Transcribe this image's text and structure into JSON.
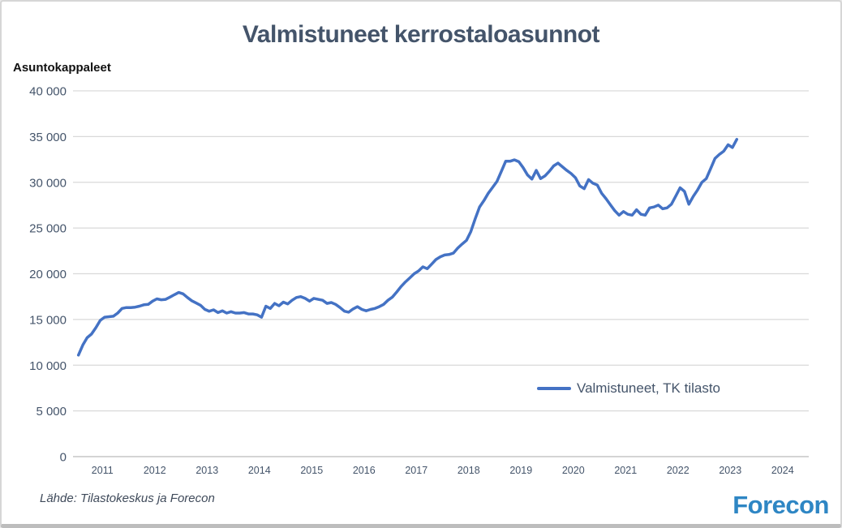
{
  "window": {
    "background": "#ffffff",
    "frame_border_color": "#d6d6d6"
  },
  "header": {
    "title": "Valmistuneet kerrostaloasunnot"
  },
  "chart_data": {
    "type": "line",
    "title": "Valmistuneet kerrostaloasunnot",
    "unit_label": "Asuntokappaleet",
    "grid": "horizontal",
    "ylim": [
      0,
      40000
    ],
    "y_step": 5000,
    "y_ticks": [
      {
        "value": 40000,
        "label": "40 000"
      },
      {
        "value": 35000,
        "label": "35 000"
      },
      {
        "value": 30000,
        "label": "30 000"
      },
      {
        "value": 25000,
        "label": "25 000"
      },
      {
        "value": 20000,
        "label": "20 000"
      },
      {
        "value": 15000,
        "label": "15 000"
      },
      {
        "value": 10000,
        "label": "10 000"
      },
      {
        "value": 5000,
        "label": "5 000"
      },
      {
        "value": 0,
        "label": "0"
      }
    ],
    "x_tick_labels": [
      "2011",
      "2012",
      "2013",
      "2014",
      "2015",
      "2016",
      "2017",
      "2018",
      "2019",
      "2020",
      "2021",
      "2022",
      "2023",
      "2024"
    ],
    "x_axis_years_shown": 14,
    "legend": {
      "position": "inside-right",
      "entries": [
        {
          "label": "Valmistuneet, TK tilasto",
          "color": "#4472C4"
        }
      ]
    },
    "series": [
      {
        "name": "Valmistuneet, TK tilasto",
        "color": "#4472C4",
        "frequency": "monthly",
        "x_start": "2011-01",
        "x_end": "2023-08",
        "values": [
          11100,
          12200,
          13000,
          13400,
          14100,
          14900,
          15250,
          15300,
          15350,
          15700,
          16200,
          16300,
          16300,
          16350,
          16450,
          16600,
          16650,
          17000,
          17250,
          17150,
          17200,
          17450,
          17700,
          17950,
          17800,
          17400,
          17050,
          16800,
          16550,
          16100,
          15900,
          16050,
          15750,
          15950,
          15700,
          15850,
          15700,
          15700,
          15750,
          15600,
          15600,
          15500,
          15250,
          16450,
          16200,
          16750,
          16500,
          16900,
          16700,
          17100,
          17400,
          17500,
          17300,
          17000,
          17300,
          17200,
          17100,
          16750,
          16850,
          16650,
          16300,
          15900,
          15800,
          16150,
          16400,
          16100,
          15950,
          16100,
          16200,
          16400,
          16650,
          17100,
          17450,
          18000,
          18600,
          19100,
          19550,
          20000,
          20300,
          20750,
          20550,
          21050,
          21550,
          21850,
          22050,
          22100,
          22250,
          22800,
          23250,
          23650,
          24600,
          26000,
          27300,
          28000,
          28800,
          29450,
          30100,
          31200,
          32300,
          32300,
          32450,
          32250,
          31600,
          30800,
          30350,
          31300,
          30400,
          30700,
          31200,
          31800,
          32100,
          31700,
          31300,
          30950,
          30500,
          29600,
          29300,
          30300,
          29900,
          29700,
          28800,
          28200,
          27550,
          26900,
          26400,
          26800,
          26500,
          26400,
          27000,
          26500,
          26400,
          27200,
          27300,
          27500,
          27100,
          27200,
          27600,
          28500,
          29400,
          29000,
          27600,
          28450,
          29150,
          30000,
          30400,
          31500,
          32600,
          33050,
          33400,
          34100,
          33800,
          34700
        ]
      }
    ]
  },
  "footer": {
    "source": "Lähde: Tilastokeskus ja Forecon",
    "logo_text": "Forecon"
  },
  "colors": {
    "line": "#4472C4",
    "title_text": "#44546A",
    "axis_text": "#44546A",
    "gridline": "#D9D9D9",
    "zero_line": "#C6C6C6",
    "logo_blue": "#2E86C4"
  }
}
